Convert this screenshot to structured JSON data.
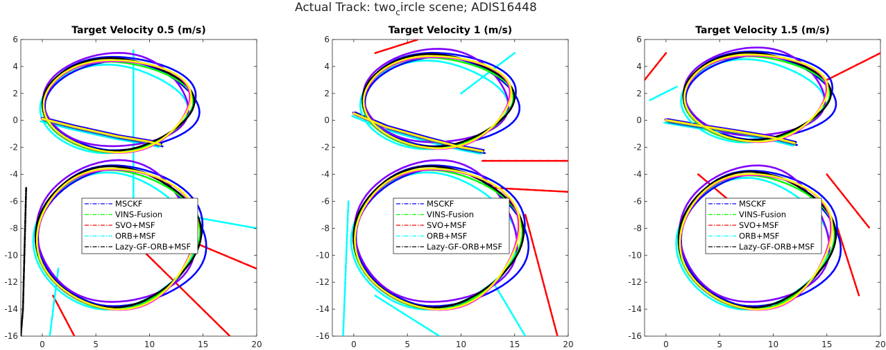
{
  "figure": {
    "suptitle_main": "Actual Track: two",
    "suptitle_sub": "c",
    "suptitle_rest": "ircle scene; ADIS16448"
  },
  "legend_entries": [
    {
      "label": "MSCKF",
      "color": "#0000ff"
    },
    {
      "label": "VINS-Fusion",
      "color": "#00ff00"
    },
    {
      "label": "SVO+MSF",
      "color": "#ff0000"
    },
    {
      "label": "ORB+MSF",
      "color": "#00ffff"
    },
    {
      "label": "Lazy-GF-ORB+MSF",
      "color": "#000000"
    }
  ],
  "colors": {
    "ground_truth_1": "#ff00ff",
    "ground_truth_2": "#ffff00",
    "extra_track": "#8000ff"
  },
  "chart_data": [
    {
      "type": "line",
      "title": "Target Velocity 0.5 (m/s)",
      "xlim": [
        -2,
        20
      ],
      "ylim": [
        -16,
        6
      ],
      "xticks": [
        0,
        5,
        10,
        15,
        20
      ],
      "yticks": [
        6,
        4,
        2,
        0,
        -2,
        -4,
        -6,
        -8,
        -10,
        -12,
        -14,
        -16
      ],
      "legend": "center",
      "grid": false
    },
    {
      "type": "line",
      "title": "Target Velocity 1 (m/s)",
      "xlim": [
        -2,
        20
      ],
      "ylim": [
        -16,
        6
      ],
      "xticks": [
        0,
        5,
        10,
        15,
        20
      ],
      "yticks": [
        6,
        4,
        2,
        0,
        -2,
        -4,
        -6,
        -8,
        -10,
        -12,
        -14,
        -16
      ],
      "legend": "center",
      "grid": false
    },
    {
      "type": "line",
      "title": "Target Velocity 1.5 (m/s)",
      "xlim": [
        -2,
        20
      ],
      "ylim": [
        -16,
        6
      ],
      "xticks": [
        0,
        5,
        10,
        15,
        20
      ],
      "yticks": [
        6,
        4,
        2,
        0,
        -2,
        -4,
        -6,
        -8,
        -10,
        -12,
        -14,
        -16
      ],
      "legend": "center",
      "grid": false
    }
  ]
}
